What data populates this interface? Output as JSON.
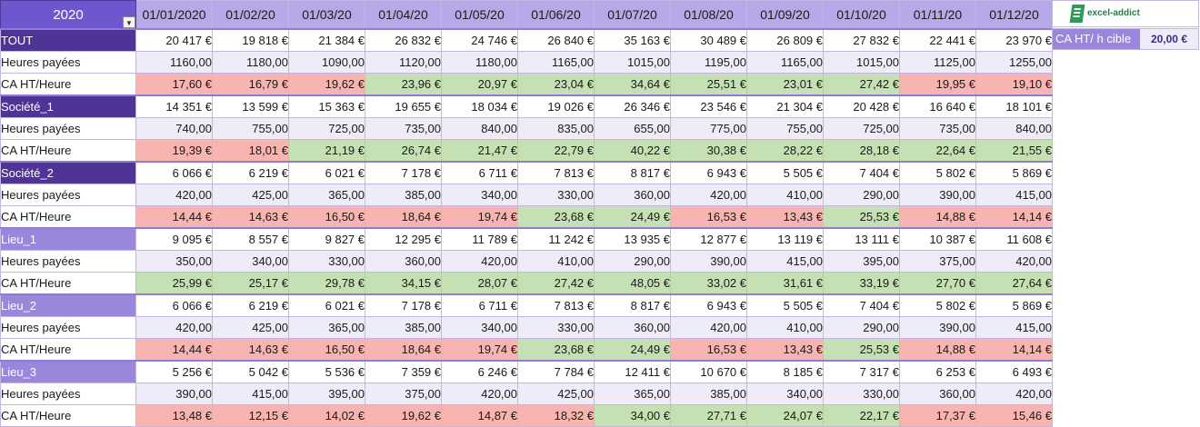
{
  "year": "2020",
  "months": [
    "01/01/2020",
    "01/02/20",
    "01/03/20",
    "01/04/20",
    "01/05/20",
    "01/06/20",
    "01/07/20",
    "01/08/20",
    "01/09/20",
    "01/10/20",
    "01/11/20",
    "01/12/20"
  ],
  "logo_text": "excel-addict",
  "target": {
    "label": "CA HT/ h cible",
    "value": "20,00 €"
  },
  "groups": [
    {
      "name": "TOUT",
      "tone": "dark",
      "ca": [
        "20 417 €",
        "19 818 €",
        "21 384 €",
        "26 832 €",
        "24 746 €",
        "26 840 €",
        "35 163 €",
        "30 489 €",
        "26 809 €",
        "27 832 €",
        "22 441 €",
        "23 970 €"
      ],
      "hours_label": "Heures payées",
      "hours": [
        "1160,00",
        "1180,00",
        "1090,00",
        "1120,00",
        "1180,00",
        "1165,00",
        "1015,00",
        "1195,00",
        "1165,00",
        "1015,00",
        "1125,00",
        "1255,00"
      ],
      "ratio_label": "CA HT/Heure",
      "ratio": [
        "17,60 €",
        "16,79 €",
        "19,62 €",
        "23,96 €",
        "20,97 €",
        "23,04 €",
        "34,64 €",
        "25,51 €",
        "23,01 €",
        "27,42 €",
        "19,95 €",
        "19,10 €"
      ]
    },
    {
      "name": "Société_1",
      "tone": "dark",
      "ca": [
        "14 351 €",
        "13 599 €",
        "15 363 €",
        "19 655 €",
        "18 034 €",
        "19 026 €",
        "26 346 €",
        "23 546 €",
        "21 304 €",
        "20 428 €",
        "16 640 €",
        "18 101 €"
      ],
      "hours_label": "Heures payées",
      "hours": [
        "740,00",
        "755,00",
        "725,00",
        "735,00",
        "840,00",
        "835,00",
        "655,00",
        "775,00",
        "755,00",
        "725,00",
        "735,00",
        "840,00"
      ],
      "ratio_label": "CA HT/Heure",
      "ratio": [
        "19,39 €",
        "18,01 €",
        "21,19 €",
        "26,74 €",
        "21,47 €",
        "22,79 €",
        "40,22 €",
        "30,38 €",
        "28,22 €",
        "28,18 €",
        "22,64 €",
        "21,55 €"
      ]
    },
    {
      "name": "Société_2",
      "tone": "dark",
      "ca": [
        "6 066 €",
        "6 219 €",
        "6 021 €",
        "7 178 €",
        "6 711 €",
        "7 813 €",
        "8 817 €",
        "6 943 €",
        "5 505 €",
        "7 404 €",
        "5 802 €",
        "5 869 €"
      ],
      "hours_label": "Heures payées",
      "hours": [
        "420,00",
        "425,00",
        "365,00",
        "385,00",
        "340,00",
        "330,00",
        "360,00",
        "420,00",
        "410,00",
        "290,00",
        "390,00",
        "415,00"
      ],
      "ratio_label": "CA HT/Heure",
      "ratio": [
        "14,44 €",
        "14,63 €",
        "16,50 €",
        "18,64 €",
        "19,74 €",
        "23,68 €",
        "24,49 €",
        "16,53 €",
        "13,43 €",
        "25,53 €",
        "14,88 €",
        "14,14 €"
      ]
    },
    {
      "name": "Lieu_1",
      "tone": "light",
      "ca": [
        "9 095 €",
        "8 557 €",
        "9 827 €",
        "12 295 €",
        "11 789 €",
        "11 242 €",
        "13 935 €",
        "12 877 €",
        "13 119 €",
        "13 111 €",
        "10 387 €",
        "11 608 €"
      ],
      "hours_label": "Heures payées",
      "hours": [
        "350,00",
        "340,00",
        "330,00",
        "360,00",
        "420,00",
        "410,00",
        "290,00",
        "390,00",
        "415,00",
        "395,00",
        "375,00",
        "420,00"
      ],
      "ratio_label": "CA HT/Heure",
      "ratio": [
        "25,99 €",
        "25,17 €",
        "29,78 €",
        "34,15 €",
        "28,07 €",
        "27,42 €",
        "48,05 €",
        "33,02 €",
        "31,61 €",
        "33,19 €",
        "27,70 €",
        "27,64 €"
      ]
    },
    {
      "name": "Lieu_2",
      "tone": "light",
      "ca": [
        "6 066 €",
        "6 219 €",
        "6 021 €",
        "7 178 €",
        "6 711 €",
        "7 813 €",
        "8 817 €",
        "6 943 €",
        "5 505 €",
        "7 404 €",
        "5 802 €",
        "5 869 €"
      ],
      "hours_label": "Heures payées",
      "hours": [
        "420,00",
        "425,00",
        "365,00",
        "385,00",
        "340,00",
        "330,00",
        "360,00",
        "420,00",
        "410,00",
        "290,00",
        "390,00",
        "415,00"
      ],
      "ratio_label": "CA HT/Heure",
      "ratio": [
        "14,44 €",
        "14,63 €",
        "16,50 €",
        "18,64 €",
        "19,74 €",
        "23,68 €",
        "24,49 €",
        "16,53 €",
        "13,43 €",
        "25,53 €",
        "14,88 €",
        "14,14 €"
      ]
    },
    {
      "name": "Lieu_3",
      "tone": "light",
      "ca": [
        "5 256 €",
        "5 042 €",
        "5 536 €",
        "7 359 €",
        "6 246 €",
        "7 784 €",
        "12 411 €",
        "10 670 €",
        "8 185 €",
        "7 317 €",
        "6 253 €",
        "6 493 €"
      ],
      "hours_label": "Heures payées",
      "hours": [
        "390,00",
        "415,00",
        "395,00",
        "375,00",
        "420,00",
        "425,00",
        "365,00",
        "385,00",
        "340,00",
        "330,00",
        "360,00",
        "420,00"
      ],
      "ratio_label": "CA HT/Heure",
      "ratio": [
        "13,48 €",
        "12,15 €",
        "14,02 €",
        "19,62 €",
        "14,87 €",
        "18,32 €",
        "34,00 €",
        "27,71 €",
        "24,07 €",
        "22,17 €",
        "17,37 €",
        "15,46 €"
      ]
    }
  ],
  "colors": {
    "above_target": "#c5e0b3",
    "below_target": "#f8b4b0",
    "header": "#b7a9e8",
    "entity_dark": "#4f3496",
    "entity_light": "#9a86db",
    "hours_fill": "#efebf8"
  }
}
